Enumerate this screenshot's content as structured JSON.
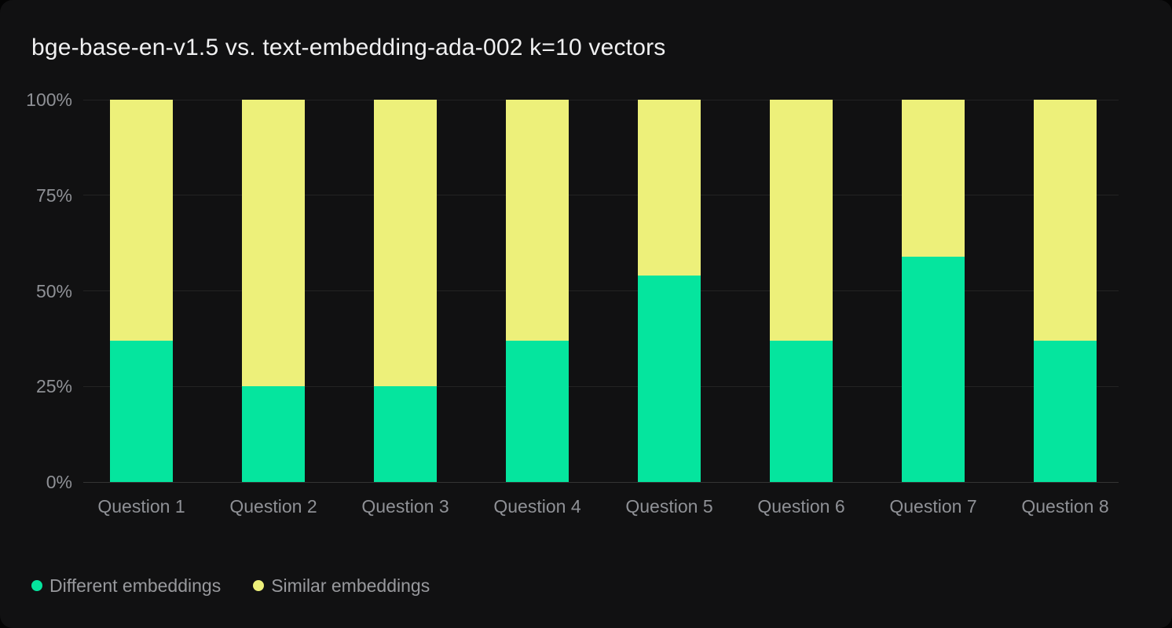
{
  "card": {
    "title": "bge-base-en-v1.5 vs. text-embedding-ada-002 k=10 vectors"
  },
  "colors": {
    "different_embeddings": "#05e59e",
    "similar_embeddings": "#edf07a",
    "card_background": "#111112",
    "page_background": "#040404",
    "gridline": "#232323",
    "baseline": "#343434",
    "axis_text": "#8f9196",
    "legend_text": "#98999d",
    "title_text": "#f0f0f1"
  },
  "chart_data": {
    "type": "bar",
    "stacked": true,
    "title": "bge-base-en-v1.5 vs. text-embedding-ada-002 k=10 vectors",
    "categories": [
      "Question 1",
      "Question 2",
      "Question 3",
      "Question 4",
      "Question 5",
      "Question 6",
      "Question 7",
      "Question 8"
    ],
    "series": [
      {
        "name": "Different embeddings",
        "color": "#05e59e",
        "values": [
          37,
          25,
          25,
          37,
          54,
          37,
          59,
          37
        ]
      },
      {
        "name": "Similar embeddings",
        "color": "#edf07a",
        "values": [
          63,
          75,
          75,
          63,
          46,
          63,
          41,
          63
        ]
      }
    ],
    "xlabel": "",
    "ylabel": "",
    "ylim": [
      0,
      100
    ],
    "y_ticks": [
      {
        "value": 0,
        "label": "0%"
      },
      {
        "value": 25,
        "label": "25%"
      },
      {
        "value": 50,
        "label": "50%"
      },
      {
        "value": 75,
        "label": "75%"
      },
      {
        "value": 100,
        "label": "100%"
      }
    ],
    "grid": "horizontal",
    "legend_position": "bottom-left"
  },
  "legend": {
    "items": [
      {
        "label": "Different embeddings",
        "color": "#05e59e"
      },
      {
        "label": "Similar embeddings",
        "color": "#edf07a"
      }
    ]
  }
}
